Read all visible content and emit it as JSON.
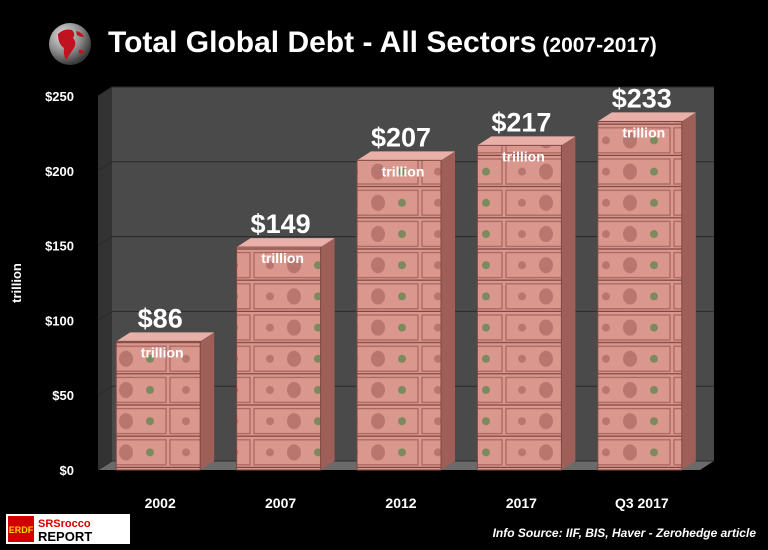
{
  "title": {
    "main": "Total Global Debt - All Sectors",
    "sub": "(2007-2017)"
  },
  "source": "Info Source: IIF, BIS, Haver - Zerohedge article",
  "logo": {
    "badge_text": "SRSrocco",
    "text": "REPORT"
  },
  "chart_data": {
    "type": "bar",
    "title": "Total Global Debt - All Sectors (2007-2017)",
    "ylabel": "trillion",
    "xlabel": "",
    "categories": [
      "2002",
      "2007",
      "2012",
      "2017",
      "Q3 2017"
    ],
    "values": [
      86,
      149,
      207,
      217,
      233
    ],
    "value_labels": [
      "$86",
      "$149",
      "$207",
      "$217",
      "$233"
    ],
    "unit_label": "trillion",
    "ylim": [
      0,
      250
    ],
    "yticks": [
      0,
      50,
      100,
      150,
      200,
      250
    ],
    "ytick_labels": [
      "$0",
      "$50",
      "$100",
      "$150",
      "$200",
      "$250"
    ],
    "grid": true,
    "colors": {
      "background": "#000000",
      "plot_wall": "#4a4a4a",
      "bar_face": "#d9978e",
      "bar_side": "#9e5f58",
      "bar_top": "#e8b0a8",
      "gridline": "#2a2a2a"
    }
  }
}
